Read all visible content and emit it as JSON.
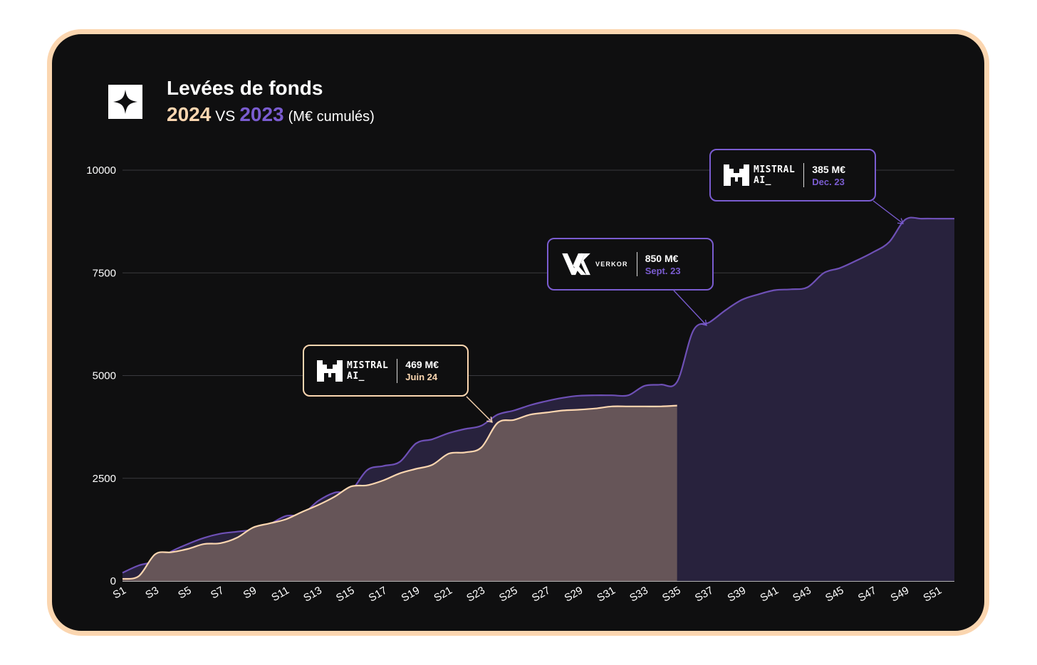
{
  "header": {
    "title": "Levées de fonds",
    "year_a": "2024",
    "vs": "VS",
    "year_b": "2023",
    "unit": "(M€ cumulés)"
  },
  "colors": {
    "frame_border": "#fbd6b0",
    "background": "#0f0f10",
    "series_2024_line": "#fbd6b0",
    "series_2024_fill": "#665558",
    "series_2023_line": "#6e50b6",
    "series_2023_fill": "#28223d"
  },
  "annotations": [
    {
      "company": "MISTRAL AI_",
      "brand_line1": "MISTRAL",
      "brand_line2": "AI_",
      "icon": "mistral-logo-icon",
      "amount": "469 M€",
      "date": "Juin 24",
      "series": "2024",
      "color": "#fbd6b0"
    },
    {
      "company": "VERKOR",
      "brand_line1": "VERKOR",
      "icon": "verkor-logo-icon",
      "amount": "850 M€",
      "date": "Sept. 23",
      "series": "2023",
      "color": "#7a5cd0"
    },
    {
      "company": "MISTRAL AI_",
      "brand_line1": "MISTRAL",
      "brand_line2": "AI_",
      "icon": "mistral-logo-icon",
      "amount": "385 M€",
      "date": "Dec. 23",
      "series": "2023",
      "color": "#7a5cd0"
    }
  ],
  "chart_data": {
    "type": "area",
    "title": "Levées de fonds",
    "xlabel": "",
    "ylabel": "",
    "ylim": [
      0,
      10000
    ],
    "y_ticks": [
      "0",
      "2500",
      "5000",
      "7500",
      "10000"
    ],
    "grid": true,
    "x_tick_labels": [
      "S1",
      "S3",
      "S5",
      "S7",
      "S9",
      "S11",
      "S13",
      "S15",
      "S17",
      "S19",
      "S21",
      "S23",
      "S25",
      "S27",
      "S29",
      "S31",
      "S33",
      "S35",
      "S37",
      "S39",
      "S41",
      "S43",
      "S45",
      "S47",
      "S49",
      "S51"
    ],
    "x_tick_weeks": [
      1,
      3,
      5,
      7,
      9,
      11,
      13,
      15,
      17,
      19,
      21,
      23,
      25,
      27,
      29,
      31,
      33,
      35,
      37,
      39,
      41,
      43,
      45,
      47,
      49,
      51
    ],
    "x_range": [
      1,
      52
    ],
    "series": [
      {
        "name": "2023",
        "weeks": [
          1,
          2,
          3,
          4,
          5,
          6,
          7,
          8,
          9,
          10,
          11,
          12,
          13,
          14,
          15,
          16,
          17,
          18,
          19,
          20,
          21,
          22,
          23,
          24,
          25,
          26,
          27,
          28,
          29,
          30,
          31,
          32,
          33,
          34,
          35,
          36,
          37,
          38,
          39,
          40,
          41,
          42,
          43,
          44,
          45,
          46,
          47,
          48,
          49,
          50,
          51,
          52
        ],
        "values": [
          200,
          380,
          480,
          720,
          900,
          1050,
          1150,
          1200,
          1250,
          1380,
          1580,
          1620,
          1950,
          2150,
          2200,
          2700,
          2800,
          2900,
          3350,
          3450,
          3600,
          3700,
          3780,
          4050,
          4150,
          4280,
          4380,
          4460,
          4510,
          4520,
          4520,
          4520,
          4750,
          4780,
          4850,
          6100,
          6300,
          6600,
          6850,
          6980,
          7080,
          7100,
          7150,
          7500,
          7620,
          7800,
          8000,
          8250,
          8800,
          8820,
          8820,
          8820
        ]
      },
      {
        "name": "2024",
        "weeks": [
          1,
          2,
          3,
          4,
          5,
          6,
          7,
          8,
          9,
          10,
          11,
          12,
          13,
          14,
          15,
          16,
          17,
          18,
          19,
          20,
          21,
          22,
          23,
          24,
          25,
          26,
          27,
          28,
          29,
          30,
          31,
          32,
          33,
          34,
          35
        ],
        "values": [
          50,
          120,
          650,
          700,
          780,
          900,
          920,
          1050,
          1300,
          1400,
          1500,
          1680,
          1850,
          2050,
          2300,
          2330,
          2450,
          2620,
          2730,
          2830,
          3100,
          3130,
          3250,
          3850,
          3920,
          4050,
          4100,
          4150,
          4170,
          4200,
          4250,
          4250,
          4250,
          4250,
          4270
        ]
      }
    ]
  }
}
